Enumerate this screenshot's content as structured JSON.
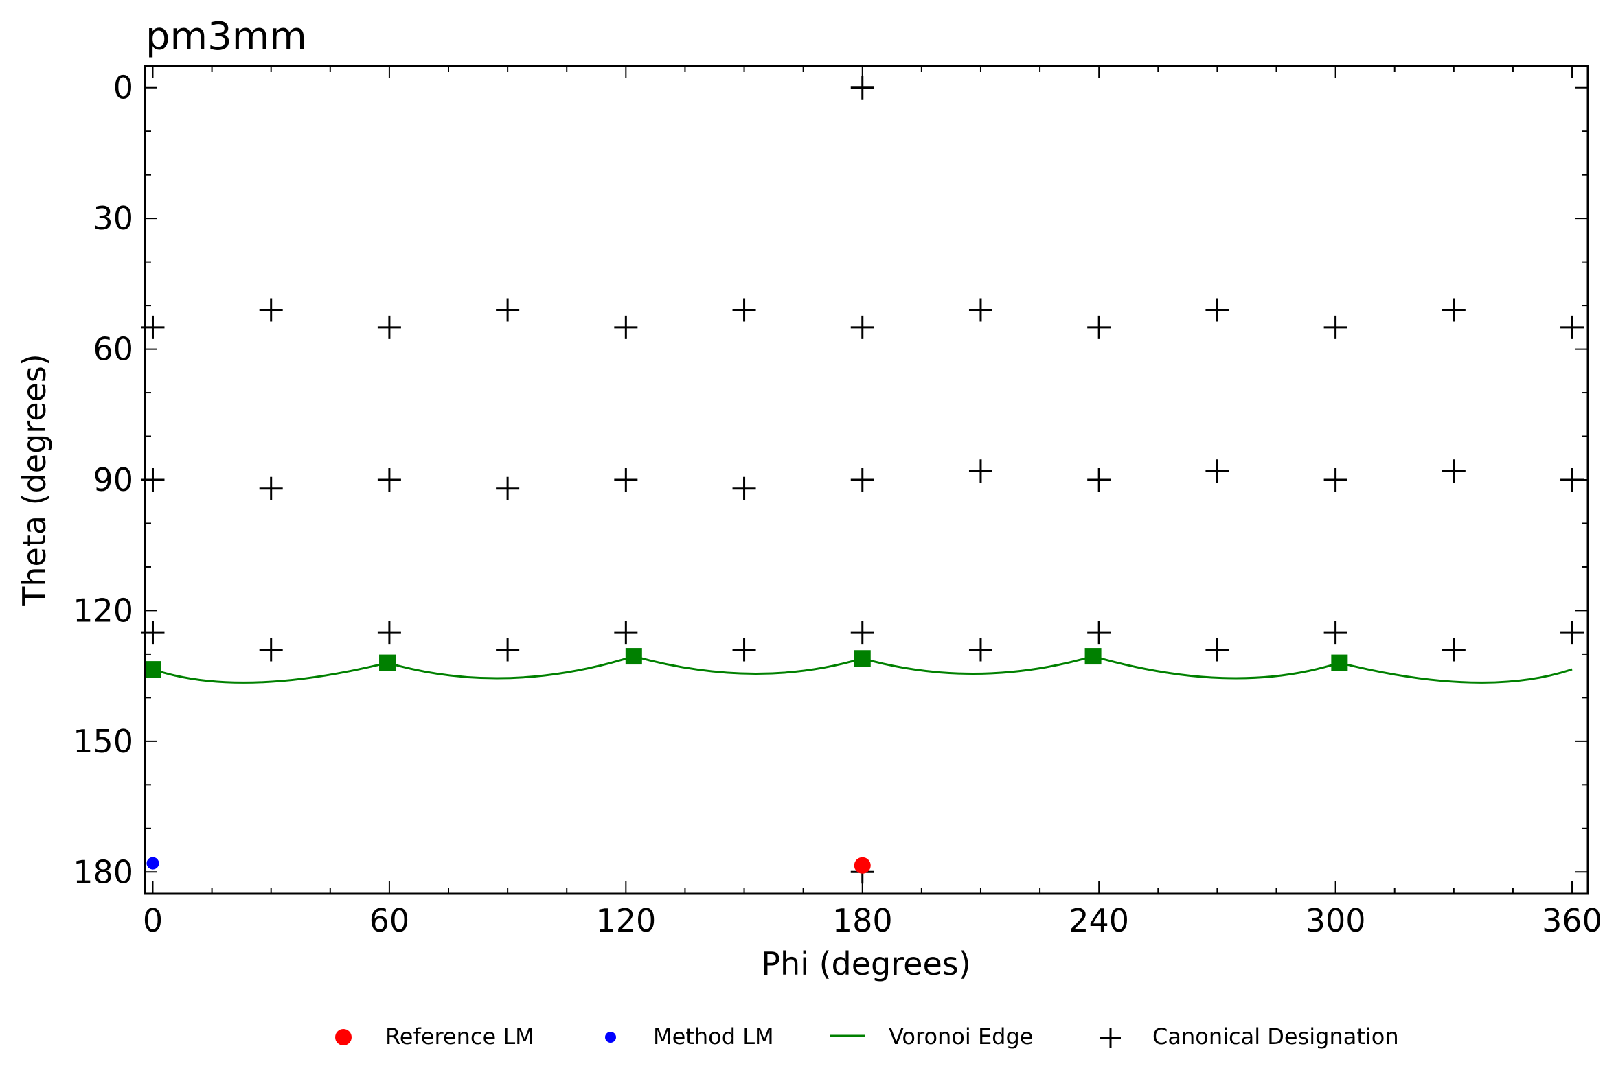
{
  "chart_data": {
    "type": "scatter",
    "title": "pm3mm",
    "xlabel": "Phi (degrees)",
    "ylabel": "Theta (degrees)",
    "xlim": [
      -2,
      364
    ],
    "ylim": [
      185,
      -5
    ],
    "y_inverted": true,
    "grid": false,
    "x_ticks": [
      0,
      60,
      120,
      180,
      240,
      300,
      360
    ],
    "y_ticks": [
      0,
      30,
      60,
      90,
      120,
      150,
      180
    ],
    "legend_position": "bottom-center",
    "colors": {
      "reference": "#ff0000",
      "method": "#0000ff",
      "voronoi": "#008000",
      "canonical": "#000000"
    },
    "series": [
      {
        "name": "Reference LM",
        "marker": "circle",
        "points": [
          [
            180,
            178.5
          ]
        ]
      },
      {
        "name": "Method LM",
        "marker": "small-circle",
        "points": [
          [
            0,
            178
          ]
        ]
      },
      {
        "name": "Voronoi Edge",
        "marker": "line",
        "vertices": [
          [
            0,
            133.5
          ],
          [
            59.5,
            132
          ],
          [
            122,
            130.5
          ],
          [
            180,
            131
          ],
          [
            238.5,
            130.5
          ],
          [
            301,
            132
          ],
          [
            360,
            133.5
          ]
        ],
        "sag": [
          [
            26,
            136.5
          ],
          [
            90,
            135.5
          ],
          [
            152,
            134.5
          ],
          [
            209,
            134.5
          ],
          [
            272,
            135.5
          ],
          [
            334,
            136.5
          ]
        ]
      },
      {
        "name": "Canonical Designation",
        "marker": "plus",
        "points": [
          [
            180,
            0
          ],
          [
            0,
            55
          ],
          [
            30,
            51
          ],
          [
            60,
            55
          ],
          [
            90,
            51
          ],
          [
            120,
            55
          ],
          [
            150,
            51
          ],
          [
            180,
            55
          ],
          [
            210,
            51
          ],
          [
            240,
            55
          ],
          [
            270,
            51
          ],
          [
            300,
            55
          ],
          [
            330,
            51
          ],
          [
            360,
            55
          ],
          [
            0,
            90
          ],
          [
            30,
            92
          ],
          [
            60,
            90
          ],
          [
            90,
            92
          ],
          [
            120,
            90
          ],
          [
            150,
            92
          ],
          [
            180,
            90
          ],
          [
            210,
            88
          ],
          [
            240,
            90
          ],
          [
            270,
            88
          ],
          [
            300,
            90
          ],
          [
            330,
            88
          ],
          [
            360,
            90
          ],
          [
            0,
            125
          ],
          [
            30,
            129
          ],
          [
            60,
            125
          ],
          [
            90,
            129
          ],
          [
            120,
            125
          ],
          [
            150,
            129
          ],
          [
            180,
            125
          ],
          [
            210,
            129
          ],
          [
            240,
            125
          ],
          [
            270,
            129
          ],
          [
            300,
            125
          ],
          [
            330,
            129
          ],
          [
            360,
            125
          ],
          [
            180,
            180
          ]
        ]
      }
    ]
  }
}
